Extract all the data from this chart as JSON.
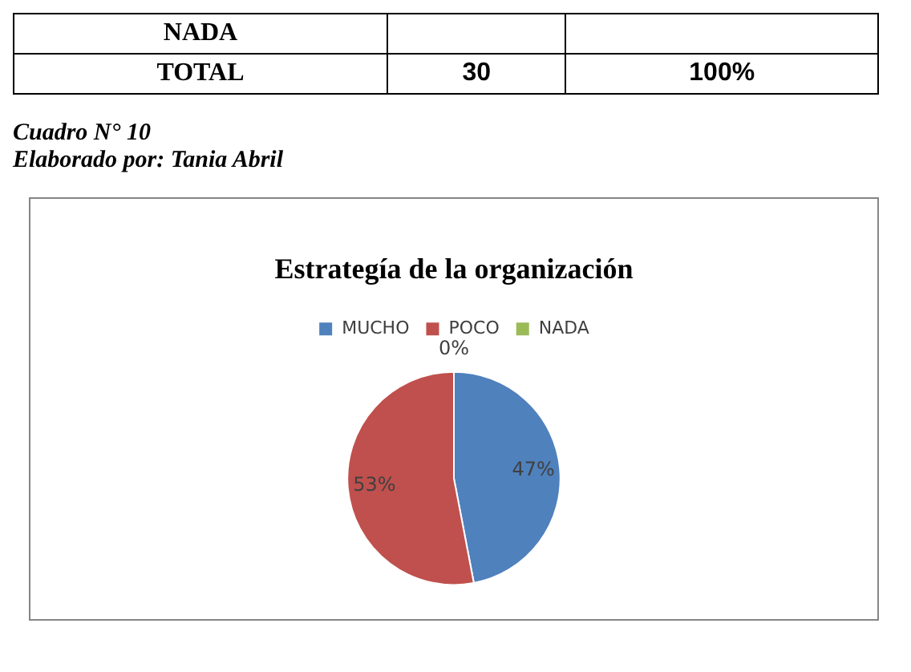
{
  "chart_data": {
    "type": "pie",
    "title": "Estrategía de la organización",
    "categories": [
      "MUCHO",
      "POCO",
      "NADA"
    ],
    "values": [
      47,
      53,
      0
    ],
    "value_labels": [
      "47%",
      "53%",
      "0%"
    ],
    "colors": [
      "#4f81bd",
      "#c0504d",
      "#9bbb59"
    ],
    "legend": "top",
    "annotations": [
      "NADA",
      "TOTAL",
      "30",
      "100%",
      "Cuadro N° 10",
      "Elaborado por: Tania Abril"
    ]
  }
}
